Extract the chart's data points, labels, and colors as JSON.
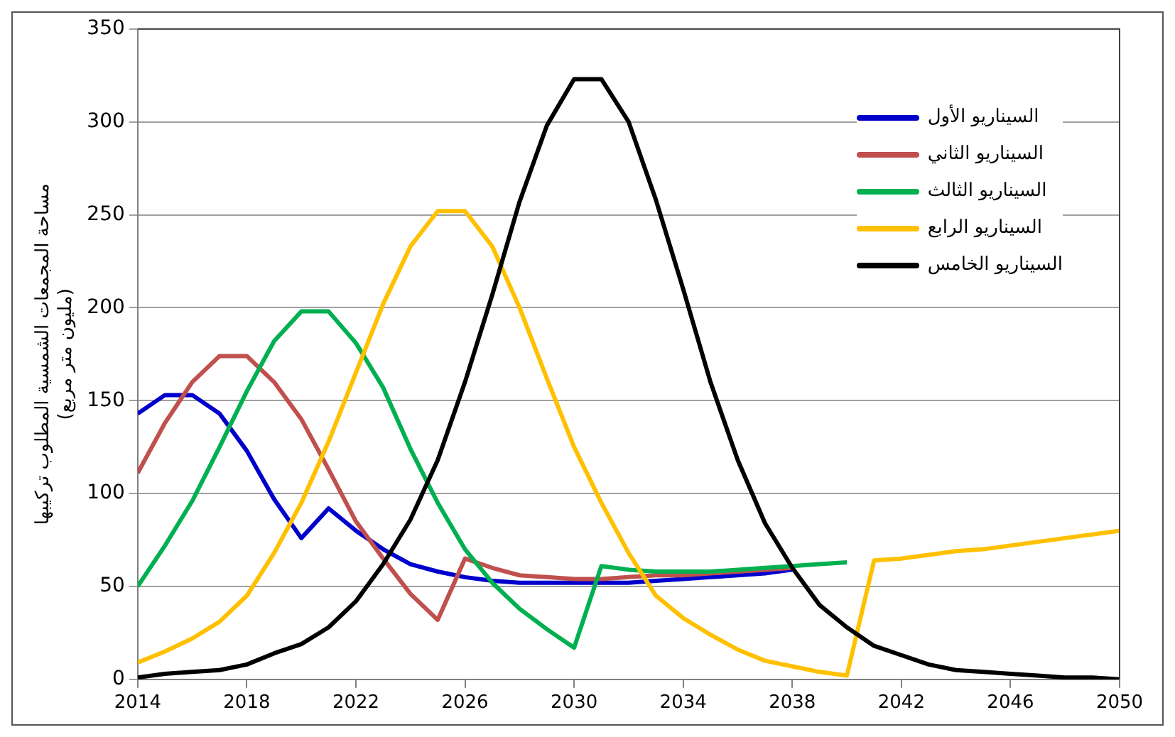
{
  "chart_data": {
    "type": "line",
    "ylabel": "مساحة المجمعات الشمسية المطلوب تركيبها\n(مليون متر مربع)",
    "x": [
      2014,
      2015,
      2016,
      2017,
      2018,
      2019,
      2020,
      2021,
      2022,
      2023,
      2024,
      2025,
      2026,
      2027,
      2028,
      2029,
      2030,
      2031,
      2032,
      2033,
      2034,
      2035,
      2036,
      2037,
      2038,
      2039,
      2040,
      2041,
      2042,
      2043,
      2044,
      2045,
      2046,
      2047,
      2048,
      2049,
      2050
    ],
    "series": [
      {
        "name": "السيناريو الأول",
        "color": "#0000cc",
        "values": [
          143,
          153,
          153,
          143,
          123,
          97,
          76,
          92,
          80,
          70,
          62,
          58,
          55,
          53,
          52,
          52,
          52,
          52,
          52,
          53,
          54,
          55,
          56,
          57,
          59,
          null,
          null,
          null,
          null,
          null,
          null,
          null,
          null,
          null,
          null,
          null,
          null
        ]
      },
      {
        "name": "السيناريو الثاني",
        "color": "#c0504d",
        "values": [
          111,
          138,
          160,
          174,
          174,
          160,
          140,
          113,
          85,
          65,
          46,
          32,
          65,
          60,
          56,
          55,
          54,
          54,
          55,
          56,
          56,
          57,
          58,
          59,
          60,
          null,
          null,
          null,
          null,
          null,
          null,
          null,
          null,
          null,
          null,
          null,
          null
        ]
      },
      {
        "name": "السيناريو الثالث",
        "color": "#00b050",
        "values": [
          50,
          72,
          96,
          125,
          155,
          182,
          198,
          198,
          181,
          157,
          124,
          95,
          70,
          52,
          38,
          27,
          17,
          61,
          59,
          58,
          58,
          58,
          59,
          60,
          61,
          62,
          63,
          null,
          null,
          null,
          null,
          null,
          null,
          null,
          null,
          null,
          null
        ]
      },
      {
        "name": "السيناريو الرابع",
        "color": "#ffc000",
        "values": [
          9,
          15,
          22,
          31,
          45,
          68,
          95,
          128,
          165,
          202,
          233,
          252,
          252,
          233,
          200,
          162,
          125,
          95,
          68,
          45,
          33,
          24,
          16,
          10,
          7,
          4,
          2,
          64,
          65,
          67,
          69,
          70,
          72,
          74,
          76,
          78,
          80
        ]
      },
      {
        "name": "السيناريو الخامس",
        "color": "#000000",
        "values": [
          1,
          3,
          4,
          5,
          8,
          14,
          19,
          28,
          42,
          62,
          86,
          118,
          160,
          207,
          257,
          298,
          323,
          323,
          300,
          258,
          210,
          160,
          118,
          84,
          60,
          40,
          28,
          18,
          13,
          8,
          5,
          4,
          3,
          2,
          1,
          1,
          0
        ]
      }
    ],
    "xlim": [
      2014,
      2050
    ],
    "xticks": [
      2014,
      2018,
      2022,
      2026,
      2030,
      2034,
      2038,
      2042,
      2046,
      2050
    ],
    "ylim": [
      0,
      350
    ],
    "yticks": [
      0,
      50,
      100,
      150,
      200,
      250,
      300,
      350
    ],
    "grid": "y",
    "legend": "top right",
    "marker": "none",
    "line_style": "solid"
  }
}
